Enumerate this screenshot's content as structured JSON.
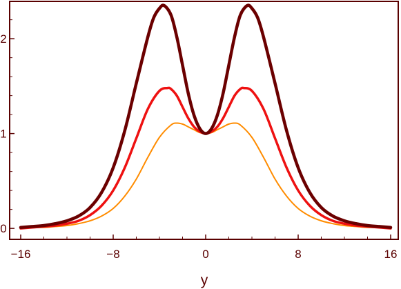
{
  "chart_data": {
    "type": "line",
    "title": "",
    "xlabel": "y",
    "ylabel": "",
    "xlim": [
      -16,
      16
    ],
    "ylim": [
      -0.05,
      2.35
    ],
    "x_ticks": [
      -16,
      -8,
      0,
      8,
      16
    ],
    "x_tick_labels": [
      "−16",
      "−8",
      "0",
      "8",
      "16"
    ],
    "y_ticks": [
      0,
      1,
      2
    ],
    "y_tick_labels": [
      "0",
      "1",
      "2"
    ],
    "grid": false,
    "legend": "none",
    "series": [
      {
        "color": "#ff8c00",
        "x": [
          -16,
          -15,
          -14,
          -13,
          -12,
          -11,
          -10,
          -9,
          -8,
          -7,
          -6,
          -5,
          -4,
          -3,
          -2.5,
          -2,
          -1.5,
          -1,
          -0.5,
          0,
          0.5,
          1,
          1.5,
          2,
          2.5,
          3,
          4,
          5,
          6,
          7,
          8,
          9,
          10,
          11,
          12,
          13,
          14,
          15,
          16
        ],
        "y": [
          0.0,
          0.01,
          0.01,
          0.02,
          0.03,
          0.05,
          0.08,
          0.13,
          0.21,
          0.34,
          0.52,
          0.75,
          0.96,
          1.09,
          1.11,
          1.1,
          1.07,
          1.04,
          1.01,
          1.0,
          1.01,
          1.04,
          1.07,
          1.1,
          1.11,
          1.09,
          0.96,
          0.75,
          0.52,
          0.34,
          0.21,
          0.13,
          0.08,
          0.05,
          0.03,
          0.02,
          0.01,
          0.01,
          0.0
        ]
      },
      {
        "color": "#ee1111",
        "x": [
          -16,
          -15,
          -14,
          -13,
          -12,
          -11,
          -10,
          -9,
          -8,
          -7,
          -6,
          -5,
          -4,
          -3.3,
          -3,
          -2.5,
          -2,
          -1.5,
          -1,
          -0.5,
          0,
          0.5,
          1,
          1.5,
          2,
          2.5,
          3,
          3.3,
          4,
          5,
          6,
          7,
          8,
          9,
          10,
          11,
          12,
          13,
          14,
          15,
          16
        ],
        "y": [
          0.0,
          0.01,
          0.02,
          0.03,
          0.05,
          0.08,
          0.14,
          0.24,
          0.4,
          0.64,
          0.95,
          1.26,
          1.45,
          1.48,
          1.47,
          1.4,
          1.28,
          1.16,
          1.07,
          1.02,
          1.0,
          1.02,
          1.07,
          1.16,
          1.28,
          1.4,
          1.47,
          1.48,
          1.45,
          1.26,
          0.95,
          0.64,
          0.4,
          0.24,
          0.14,
          0.08,
          0.05,
          0.03,
          0.02,
          0.01,
          0.0
        ]
      },
      {
        "color": "#6b0000",
        "x": [
          -16,
          -15,
          -14,
          -13,
          -12,
          -11,
          -10,
          -9,
          -8,
          -7,
          -6,
          -5,
          -4.5,
          -4,
          -3.6,
          -3,
          -2.5,
          -2,
          -1.5,
          -1,
          -0.5,
          0,
          0.5,
          1,
          1.5,
          2,
          2.5,
          3,
          3.6,
          4,
          4.5,
          5,
          6,
          7,
          8,
          9,
          10,
          11,
          12,
          13,
          14,
          15,
          16
        ],
        "y": [
          0.01,
          0.02,
          0.03,
          0.05,
          0.08,
          0.13,
          0.22,
          0.38,
          0.64,
          1.03,
          1.53,
          2.02,
          2.22,
          2.32,
          2.35,
          2.25,
          2.02,
          1.72,
          1.42,
          1.19,
          1.05,
          1.0,
          1.05,
          1.19,
          1.42,
          1.72,
          2.02,
          2.25,
          2.35,
          2.32,
          2.22,
          2.02,
          1.53,
          1.03,
          0.64,
          0.38,
          0.22,
          0.13,
          0.08,
          0.05,
          0.03,
          0.02,
          0.01
        ]
      }
    ]
  }
}
